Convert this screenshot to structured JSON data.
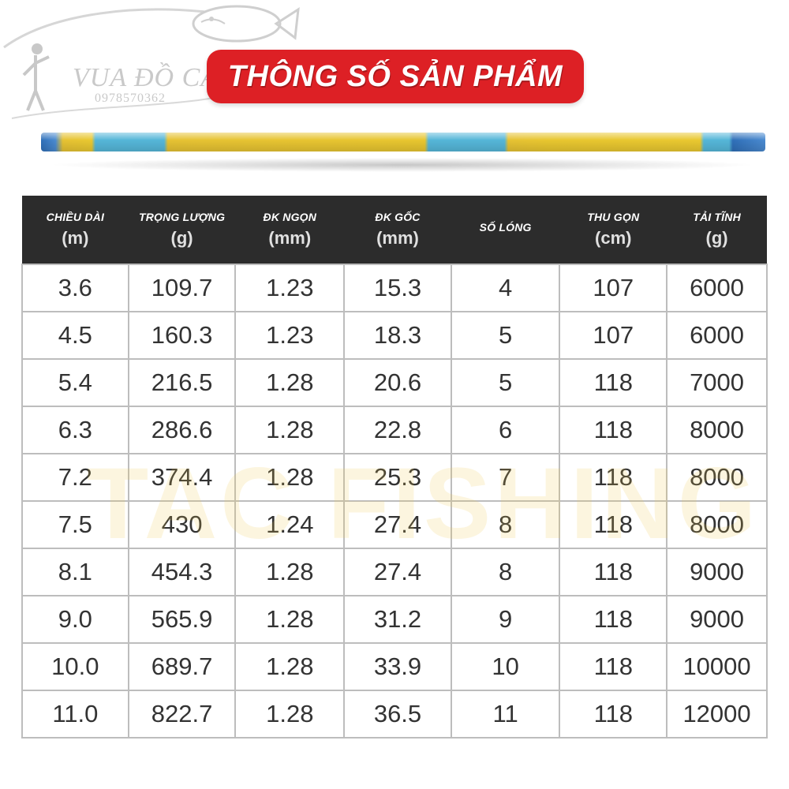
{
  "watermark_logo": {
    "brand": "VUA ĐỒ CÂU",
    "phone": "0978570362"
  },
  "title": "THÔNG SỐ SẢN PHẨM",
  "table": {
    "columns": [
      {
        "name": "CHIỀU DÀI",
        "unit": "(m)"
      },
      {
        "name": "TRỌNG LƯỢNG",
        "unit": "(g)"
      },
      {
        "name": "ĐK NGỌN",
        "unit": "(mm)"
      },
      {
        "name": "ĐK GỐC",
        "unit": "(mm)"
      },
      {
        "name": "SỐ LÓNG",
        "unit": ""
      },
      {
        "name": "THU GỌN",
        "unit": "(cm)"
      },
      {
        "name": "TẢI TĨNH",
        "unit": "(g)"
      }
    ],
    "rows": [
      [
        "3.6",
        "109.7",
        "1.23",
        "15.3",
        "4",
        "107",
        "6000"
      ],
      [
        "4.5",
        "160.3",
        "1.23",
        "18.3",
        "5",
        "107",
        "6000"
      ],
      [
        "5.4",
        "216.5",
        "1.28",
        "20.6",
        "5",
        "118",
        "7000"
      ],
      [
        "6.3",
        "286.6",
        "1.28",
        "22.8",
        "6",
        "118",
        "8000"
      ],
      [
        "7.2",
        "374.4",
        "1.28",
        "25.3",
        "7",
        "118",
        "8000"
      ],
      [
        "7.5",
        "430",
        "1.24",
        "27.4",
        "8",
        "118",
        "8000"
      ],
      [
        "8.1",
        "454.3",
        "1.28",
        "27.4",
        "8",
        "118",
        "9000"
      ],
      [
        "9.0",
        "565.9",
        "1.28",
        "31.2",
        "9",
        "118",
        "9000"
      ],
      [
        "10.0",
        "689.7",
        "1.28",
        "33.9",
        "10",
        "118",
        "10000"
      ],
      [
        "11.0",
        "822.7",
        "1.28",
        "36.5",
        "11",
        "118",
        "12000"
      ]
    ]
  },
  "background_watermark": "TAC FISHING",
  "colors": {
    "banner": "#dd2025",
    "header_bg": "#2c2c2c",
    "grid": "#bdbdbd"
  }
}
